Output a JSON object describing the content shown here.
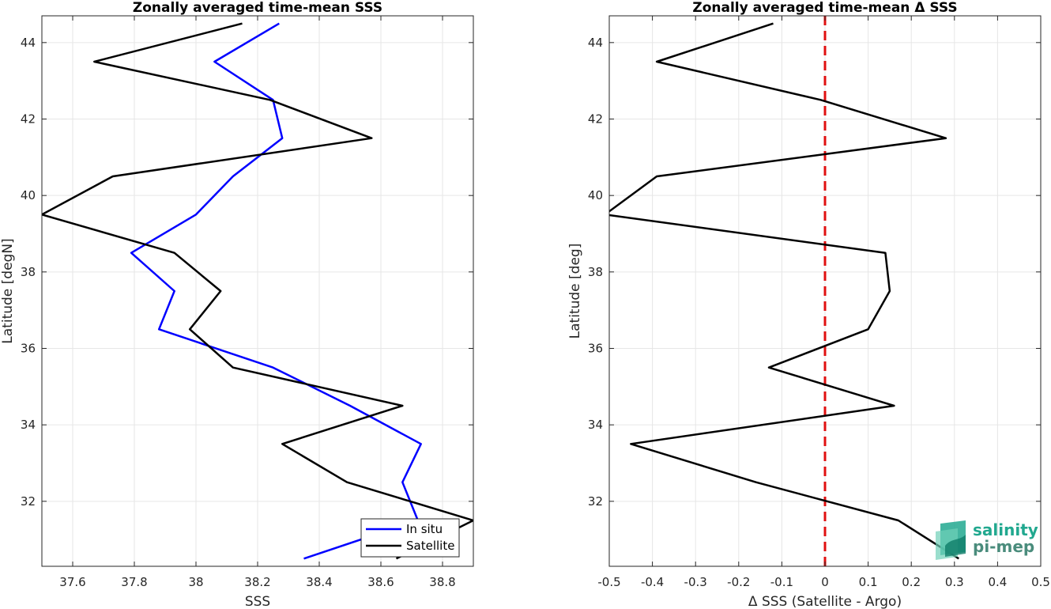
{
  "chart_data": [
    {
      "type": "line",
      "title": "Zonally averaged time-mean SSS",
      "xlabel": "SSS",
      "ylabel": "Latitude [degN]",
      "xlim": [
        37.5,
        38.9
      ],
      "ylim": [
        30.3,
        44.7
      ],
      "xticks": [
        "37.6",
        "37.8",
        "38",
        "38.2",
        "38.4",
        "38.6",
        "38.8"
      ],
      "yticks": [
        "32",
        "34",
        "36",
        "38",
        "40",
        "42",
        "44"
      ],
      "grid": true,
      "legend_location": "bottom-right",
      "series": [
        {
          "name": "In situ",
          "color": "#0000ff",
          "x": [
            38.27,
            38.06,
            38.25,
            38.28,
            38.12,
            38.0,
            37.79,
            37.93,
            37.88,
            38.25,
            38.5,
            38.73,
            38.67,
            38.72,
            38.35
          ],
          "y": [
            44.5,
            43.5,
            42.5,
            41.5,
            40.5,
            39.5,
            38.5,
            37.5,
            36.5,
            35.5,
            34.5,
            33.5,
            32.5,
            31.5,
            30.5
          ]
        },
        {
          "name": "Satellite",
          "color": "#000000",
          "x": [
            38.15,
            37.67,
            38.24,
            38.57,
            37.73,
            37.5,
            37.93,
            38.08,
            37.98,
            38.12,
            38.67,
            38.28,
            38.49,
            38.9,
            38.65
          ],
          "y": [
            44.5,
            43.5,
            42.5,
            41.5,
            40.5,
            39.5,
            38.5,
            37.5,
            36.5,
            35.5,
            34.5,
            33.5,
            32.5,
            31.5,
            30.5
          ]
        }
      ]
    },
    {
      "type": "line",
      "title": "Zonally averaged time-mean Δ SSS",
      "xlabel": "Δ SSS (Satellite - Argo)",
      "ylabel": "Latitude [deg]",
      "xlim": [
        -0.5,
        0.5
      ],
      "ylim": [
        30.3,
        44.7
      ],
      "xticks": [
        "-0.5",
        "-0.4",
        "-0.3",
        "-0.2",
        "-0.1",
        "0",
        "0.1",
        "0.2",
        "0.3",
        "0.4",
        "0.5"
      ],
      "yticks": [
        "32",
        "34",
        "36",
        "38",
        "40",
        "42",
        "44"
      ],
      "grid": true,
      "reference_line": {
        "x": 0,
        "color": "#e01010",
        "style": "dashed"
      },
      "series": [
        {
          "color": "#000000",
          "x": [
            -0.12,
            -0.39,
            -0.01,
            0.28,
            -0.39,
            -0.51,
            0.14,
            0.15,
            0.1,
            -0.13,
            0.16,
            -0.45,
            -0.16,
            0.17,
            0.31
          ],
          "y": [
            44.5,
            43.5,
            42.5,
            41.5,
            40.5,
            39.5,
            38.5,
            37.5,
            36.5,
            35.5,
            34.5,
            33.5,
            32.5,
            31.5,
            30.5
          ]
        }
      ]
    }
  ],
  "logo": {
    "line1": "salinity",
    "line2": "pi-mep",
    "color": "#21a88f"
  }
}
